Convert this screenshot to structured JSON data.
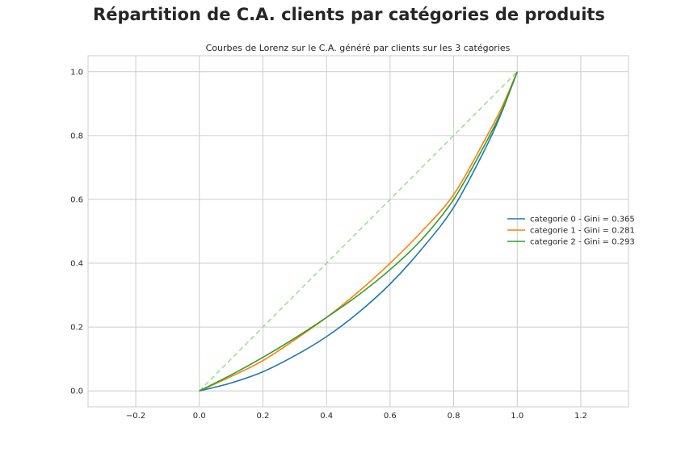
{
  "suptitle": "Répartition de C.A. clients par catégories de produits",
  "chart_data": {
    "type": "line",
    "title": "Courbes de Lorenz sur le C.A. généré par clients sur les 3 catégories",
    "xlabel": "",
    "ylabel": "",
    "xlim": [
      -0.35,
      1.35
    ],
    "ylim": [
      -0.05,
      1.05
    ],
    "xticks": [
      -0.2,
      0.0,
      0.2,
      0.4,
      0.6,
      0.8,
      1.0,
      1.2
    ],
    "xtick_labels": [
      "−0.2",
      "0.0",
      "0.2",
      "0.4",
      "0.6",
      "0.8",
      "1.0",
      "1.2"
    ],
    "yticks": [
      0.0,
      0.2,
      0.4,
      0.6,
      0.8,
      1.0
    ],
    "ytick_labels": [
      "0.0",
      "0.2",
      "0.4",
      "0.6",
      "0.8",
      "1.0"
    ],
    "grid": true,
    "legend_position": "center-right",
    "diagonal": {
      "x": [
        0,
        1
      ],
      "y": [
        0,
        1
      ],
      "color": "#98df8a",
      "style": "dashed"
    },
    "series": [
      {
        "name": "categorie 0 - Gini = 0.365",
        "color": "#1f77b4",
        "x": [
          0,
          0.1,
          0.2,
          0.3,
          0.4,
          0.5,
          0.6,
          0.7,
          0.8,
          0.9,
          0.95,
          1.0
        ],
        "y": [
          0,
          0.025,
          0.06,
          0.11,
          0.17,
          0.245,
          0.335,
          0.445,
          0.575,
          0.76,
          0.87,
          1.0
        ]
      },
      {
        "name": "categorie 1 - Gini = 0.281",
        "color": "#ff7f0e",
        "x": [
          0,
          0.1,
          0.2,
          0.3,
          0.4,
          0.5,
          0.6,
          0.7,
          0.8,
          0.9,
          0.95,
          1.0
        ],
        "y": [
          0,
          0.045,
          0.095,
          0.16,
          0.23,
          0.31,
          0.4,
          0.5,
          0.615,
          0.79,
          0.885,
          1.0
        ]
      },
      {
        "name": "categorie 2 - Gini = 0.293",
        "color": "#2ca02c",
        "x": [
          0,
          0.1,
          0.2,
          0.3,
          0.4,
          0.5,
          0.6,
          0.7,
          0.8,
          0.9,
          0.95,
          1.0
        ],
        "y": [
          0,
          0.05,
          0.105,
          0.165,
          0.23,
          0.3,
          0.38,
          0.475,
          0.6,
          0.775,
          0.875,
          1.0
        ]
      }
    ]
  }
}
